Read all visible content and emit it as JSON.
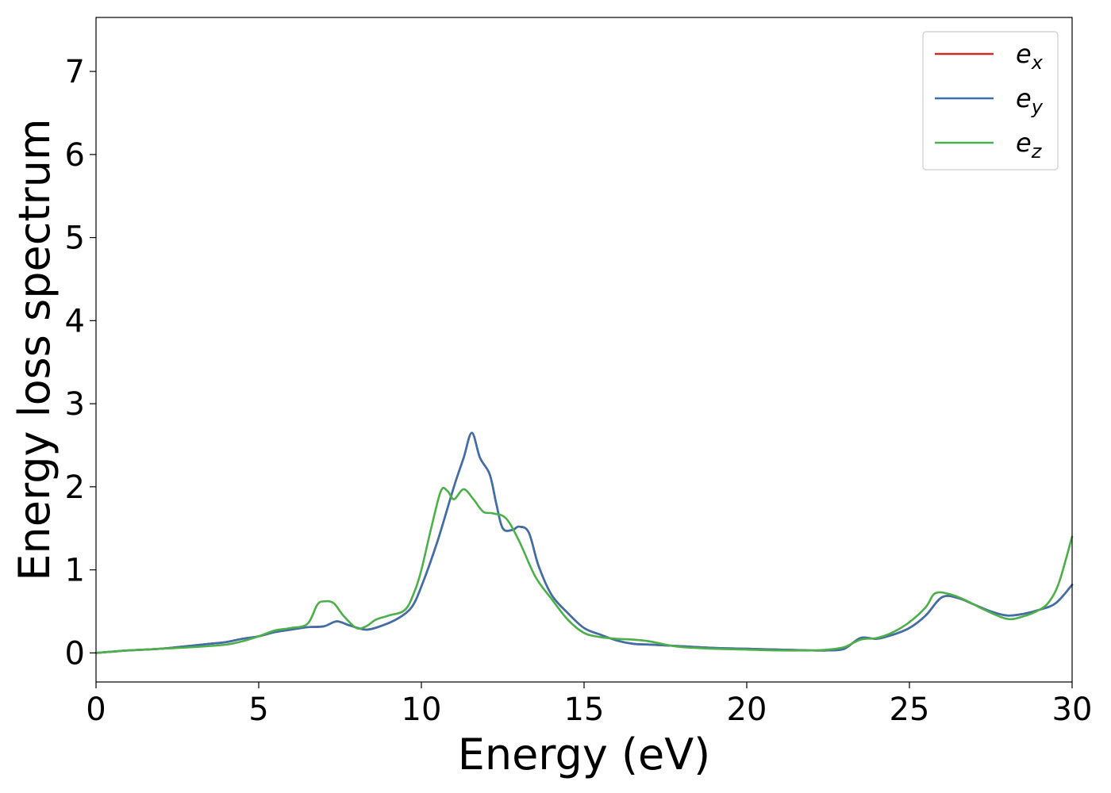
{
  "chart_data": {
    "type": "line",
    "xlabel": "Energy (eV)",
    "ylabel": "Energy loss spectrum",
    "xlim": [
      0,
      30
    ],
    "ylim": [
      -0.35,
      7.65
    ],
    "xticks": [
      0,
      5,
      10,
      15,
      20,
      25,
      30
    ],
    "yticks": [
      0,
      1,
      2,
      3,
      4,
      5,
      6,
      7
    ],
    "grid": false,
    "legend_placement": "top-right",
    "series": [
      {
        "name": "e",
        "subscript": "x",
        "color": "#d62728",
        "x": [
          0,
          1,
          2,
          3,
          3.5,
          4,
          4.5,
          5,
          5.5,
          6,
          6.5,
          7,
          7.4,
          7.8,
          8.3,
          8.8,
          9.3,
          9.7,
          10,
          10.5,
          11,
          11.3,
          11.55,
          11.8,
          12.1,
          12.3,
          12.5,
          12.8,
          13,
          13.3,
          13.6,
          14,
          14.5,
          15,
          15.5,
          16,
          16.5,
          17,
          18,
          19,
          20,
          21,
          22,
          22.5,
          23,
          23.5,
          24,
          24.5,
          25,
          25.5,
          26,
          26.5,
          27,
          27.5,
          28,
          28.5,
          29,
          29.5,
          30
        ],
        "y": [
          0.0,
          0.03,
          0.05,
          0.09,
          0.11,
          0.13,
          0.17,
          0.2,
          0.25,
          0.28,
          0.31,
          0.32,
          0.38,
          0.33,
          0.28,
          0.33,
          0.42,
          0.55,
          0.8,
          1.35,
          2.0,
          2.35,
          2.65,
          2.35,
          2.15,
          1.8,
          1.5,
          1.48,
          1.52,
          1.45,
          1.05,
          0.7,
          0.48,
          0.3,
          0.22,
          0.15,
          0.11,
          0.1,
          0.08,
          0.06,
          0.05,
          0.04,
          0.03,
          0.03,
          0.05,
          0.18,
          0.17,
          0.22,
          0.3,
          0.45,
          0.67,
          0.66,
          0.58,
          0.5,
          0.45,
          0.47,
          0.52,
          0.6,
          0.82
        ]
      },
      {
        "name": "e",
        "subscript": "y",
        "color": "#3d6fa8",
        "x": [
          0,
          1,
          2,
          3,
          3.5,
          4,
          4.5,
          5,
          5.5,
          6,
          6.5,
          7,
          7.4,
          7.8,
          8.3,
          8.8,
          9.3,
          9.7,
          10,
          10.5,
          11,
          11.3,
          11.55,
          11.8,
          12.1,
          12.3,
          12.5,
          12.8,
          13,
          13.3,
          13.6,
          14,
          14.5,
          15,
          15.5,
          16,
          16.5,
          17,
          18,
          19,
          20,
          21,
          22,
          22.5,
          23,
          23.5,
          24,
          24.5,
          25,
          25.5,
          26,
          26.5,
          27,
          27.5,
          28,
          28.5,
          29,
          29.5,
          30
        ],
        "y": [
          0.0,
          0.03,
          0.05,
          0.09,
          0.11,
          0.13,
          0.17,
          0.2,
          0.25,
          0.28,
          0.31,
          0.32,
          0.38,
          0.33,
          0.28,
          0.33,
          0.42,
          0.55,
          0.8,
          1.35,
          2.0,
          2.35,
          2.65,
          2.35,
          2.15,
          1.8,
          1.5,
          1.48,
          1.52,
          1.45,
          1.05,
          0.7,
          0.48,
          0.3,
          0.22,
          0.15,
          0.11,
          0.1,
          0.08,
          0.06,
          0.05,
          0.04,
          0.03,
          0.03,
          0.05,
          0.18,
          0.17,
          0.22,
          0.3,
          0.45,
          0.67,
          0.66,
          0.58,
          0.5,
          0.45,
          0.47,
          0.52,
          0.6,
          0.82
        ]
      },
      {
        "name": "e",
        "subscript": "z",
        "color": "#4daf4a",
        "x": [
          0,
          1,
          2,
          3,
          4,
          4.5,
          5,
          5.5,
          6,
          6.5,
          6.8,
          7,
          7.3,
          7.6,
          8,
          8.3,
          8.6,
          9,
          9.5,
          9.8,
          10,
          10.3,
          10.6,
          10.8,
          11,
          11.3,
          11.6,
          11.9,
          12.2,
          12.6,
          13,
          13.5,
          14,
          14.5,
          15,
          15.5,
          16,
          16.5,
          17,
          17.5,
          18,
          19,
          20,
          21,
          22,
          22.5,
          23,
          23.5,
          24,
          24.5,
          25,
          25.5,
          25.8,
          26.3,
          26.8,
          27.3,
          28,
          28.5,
          29,
          29.3,
          29.6,
          30
        ],
        "y": [
          0.0,
          0.03,
          0.05,
          0.07,
          0.1,
          0.14,
          0.2,
          0.27,
          0.3,
          0.35,
          0.58,
          0.62,
          0.6,
          0.45,
          0.3,
          0.32,
          0.4,
          0.45,
          0.52,
          0.75,
          1.0,
          1.5,
          1.95,
          1.95,
          1.85,
          1.97,
          1.85,
          1.7,
          1.68,
          1.62,
          1.35,
          0.92,
          0.65,
          0.4,
          0.24,
          0.19,
          0.17,
          0.16,
          0.14,
          0.1,
          0.07,
          0.05,
          0.04,
          0.03,
          0.03,
          0.04,
          0.07,
          0.16,
          0.18,
          0.25,
          0.37,
          0.55,
          0.72,
          0.7,
          0.62,
          0.52,
          0.41,
          0.44,
          0.52,
          0.62,
          0.85,
          1.4
        ]
      }
    ]
  }
}
